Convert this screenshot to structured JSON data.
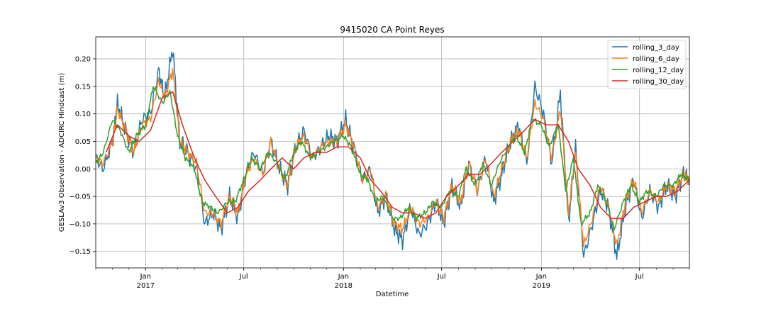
{
  "chart_data": {
    "type": "line",
    "title": "9415020 CA Point Reyes",
    "xlabel": "Datetime",
    "ylabel": "GESLAv3 Observation - ADCIRC Hindcast (m)",
    "x_range": [
      "2016-10-01",
      "2019-10-01"
    ],
    "ylim": [
      -0.18,
      0.24
    ],
    "y_ticks": [
      -0.15,
      -0.1,
      -0.05,
      0.0,
      0.05,
      0.1,
      0.15,
      0.2
    ],
    "y_tick_labels": [
      "−0.15",
      "−0.10",
      "−0.05",
      "0.00",
      "0.05",
      "0.10",
      "0.15",
      "0.20"
    ],
    "x_ticks": [
      {
        "date": "2017-01-01",
        "label": "Jan",
        "sublabel": "2017"
      },
      {
        "date": "2017-07-01",
        "label": "Jul",
        "sublabel": ""
      },
      {
        "date": "2018-01-01",
        "label": "Jan",
        "sublabel": "2018"
      },
      {
        "date": "2018-07-01",
        "label": "Jul",
        "sublabel": ""
      },
      {
        "date": "2019-01-01",
        "label": "Jan",
        "sublabel": "2019"
      },
      {
        "date": "2019-07-01",
        "label": "Jul",
        "sublabel": ""
      }
    ],
    "grid": true,
    "legend_position": "top-right",
    "series": [
      {
        "name": "rolling_3_day",
        "color": "#1f77b4",
        "x": [
          "2016-10-01",
          "2016-10-15",
          "2016-11-01",
          "2016-11-10",
          "2016-11-25",
          "2016-12-10",
          "2016-12-25",
          "2017-01-10",
          "2017-01-25",
          "2017-02-05",
          "2017-02-20",
          "2017-03-05",
          "2017-03-20",
          "2017-04-05",
          "2017-04-20",
          "2017-05-05",
          "2017-05-20",
          "2017-06-05",
          "2017-06-20",
          "2017-07-05",
          "2017-07-20",
          "2017-08-05",
          "2017-08-20",
          "2017-09-05",
          "2017-09-20",
          "2017-10-05",
          "2017-10-20",
          "2017-11-05",
          "2017-11-20",
          "2017-12-05",
          "2017-12-20",
          "2018-01-05",
          "2018-01-20",
          "2018-02-05",
          "2018-02-20",
          "2018-03-05",
          "2018-03-20",
          "2018-04-05",
          "2018-04-20",
          "2018-05-05",
          "2018-05-20",
          "2018-06-05",
          "2018-06-20",
          "2018-07-05",
          "2018-07-20",
          "2018-08-05",
          "2018-08-20",
          "2018-09-05",
          "2018-09-20",
          "2018-10-05",
          "2018-10-20",
          "2018-11-05",
          "2018-11-20",
          "2018-12-05",
          "2018-12-20",
          "2019-01-05",
          "2019-01-20",
          "2019-02-05",
          "2019-02-20",
          "2019-03-05",
          "2019-03-20",
          "2019-04-05",
          "2019-04-20",
          "2019-05-05",
          "2019-05-20",
          "2019-06-05",
          "2019-06-20",
          "2019-07-05",
          "2019-07-20",
          "2019-08-05",
          "2019-08-20",
          "2019-09-05",
          "2019-09-20",
          "2019-10-01"
        ],
        "values": [
          0.02,
          0.0,
          0.05,
          0.12,
          0.07,
          0.03,
          0.09,
          0.1,
          0.18,
          0.13,
          0.22,
          0.05,
          0.03,
          0.0,
          -0.1,
          -0.08,
          -0.11,
          -0.05,
          -0.09,
          -0.01,
          0.03,
          -0.01,
          0.05,
          0.0,
          -0.03,
          0.04,
          0.07,
          0.02,
          0.04,
          0.06,
          0.05,
          0.09,
          0.04,
          -0.02,
          0.0,
          -0.08,
          -0.05,
          -0.11,
          -0.13,
          -0.07,
          -0.12,
          -0.1,
          -0.06,
          -0.1,
          -0.03,
          -0.07,
          0.01,
          -0.04,
          0.02,
          -0.06,
          -0.01,
          0.05,
          0.08,
          0.01,
          0.15,
          0.1,
          0.01,
          0.14,
          -0.1,
          0.04,
          -0.16,
          -0.1,
          -0.04,
          -0.07,
          -0.16,
          -0.07,
          -0.02,
          -0.09,
          -0.04,
          -0.07,
          -0.03,
          -0.05,
          -0.01,
          -0.02
        ]
      },
      {
        "name": "rolling_6_day",
        "color": "#ff7f0e",
        "x": [
          "2016-10-01",
          "2016-10-15",
          "2016-11-01",
          "2016-11-10",
          "2016-11-25",
          "2016-12-10",
          "2016-12-25",
          "2017-01-10",
          "2017-01-25",
          "2017-02-05",
          "2017-02-20",
          "2017-03-05",
          "2017-03-20",
          "2017-04-05",
          "2017-04-20",
          "2017-05-05",
          "2017-05-20",
          "2017-06-05",
          "2017-06-20",
          "2017-07-05",
          "2017-07-20",
          "2017-08-05",
          "2017-08-20",
          "2017-09-05",
          "2017-09-20",
          "2017-10-05",
          "2017-10-20",
          "2017-11-05",
          "2017-11-20",
          "2017-12-05",
          "2017-12-20",
          "2018-01-05",
          "2018-01-20",
          "2018-02-05",
          "2018-02-20",
          "2018-03-05",
          "2018-03-20",
          "2018-04-05",
          "2018-04-20",
          "2018-05-05",
          "2018-05-20",
          "2018-06-05",
          "2018-06-20",
          "2018-07-05",
          "2018-07-20",
          "2018-08-05",
          "2018-08-20",
          "2018-09-05",
          "2018-09-20",
          "2018-10-05",
          "2018-10-20",
          "2018-11-05",
          "2018-11-20",
          "2018-12-05",
          "2018-12-20",
          "2019-01-05",
          "2019-01-20",
          "2019-02-05",
          "2019-02-20",
          "2019-03-05",
          "2019-03-20",
          "2019-04-05",
          "2019-04-20",
          "2019-05-05",
          "2019-05-20",
          "2019-06-05",
          "2019-06-20",
          "2019-07-05",
          "2019-07-20",
          "2019-08-05",
          "2019-08-20",
          "2019-09-05",
          "2019-09-20",
          "2019-10-01"
        ],
        "values": [
          0.02,
          0.01,
          0.05,
          0.11,
          0.07,
          0.03,
          0.08,
          0.09,
          0.16,
          0.13,
          0.18,
          0.05,
          0.03,
          0.01,
          -0.08,
          -0.08,
          -0.1,
          -0.05,
          -0.08,
          -0.01,
          0.02,
          -0.01,
          0.05,
          0.0,
          -0.03,
          0.04,
          0.06,
          0.02,
          0.04,
          0.05,
          0.05,
          0.08,
          0.04,
          -0.02,
          0.0,
          -0.07,
          -0.05,
          -0.1,
          -0.11,
          -0.07,
          -0.1,
          -0.09,
          -0.06,
          -0.09,
          -0.03,
          -0.06,
          0.01,
          -0.04,
          0.02,
          -0.05,
          0.0,
          0.05,
          0.07,
          0.02,
          0.12,
          0.09,
          0.02,
          0.11,
          -0.08,
          0.03,
          -0.14,
          -0.09,
          -0.03,
          -0.07,
          -0.14,
          -0.06,
          -0.02,
          -0.08,
          -0.04,
          -0.06,
          -0.03,
          -0.04,
          -0.01,
          -0.02
        ]
      },
      {
        "name": "rolling_12_day",
        "color": "#2ca02c",
        "x": [
          "2016-10-01",
          "2016-10-15",
          "2016-11-01",
          "2016-11-15",
          "2016-12-01",
          "2016-12-15",
          "2017-01-01",
          "2017-01-15",
          "2017-02-01",
          "2017-02-15",
          "2017-03-01",
          "2017-03-15",
          "2017-04-01",
          "2017-04-15",
          "2017-05-01",
          "2017-05-15",
          "2017-06-01",
          "2017-06-15",
          "2017-07-01",
          "2017-07-15",
          "2017-08-01",
          "2017-08-15",
          "2017-09-01",
          "2017-09-15",
          "2017-10-01",
          "2017-10-15",
          "2017-11-01",
          "2017-11-15",
          "2017-12-01",
          "2017-12-15",
          "2018-01-01",
          "2018-01-15",
          "2018-02-01",
          "2018-02-15",
          "2018-03-01",
          "2018-03-15",
          "2018-04-01",
          "2018-04-15",
          "2018-05-01",
          "2018-05-15",
          "2018-06-01",
          "2018-06-15",
          "2018-07-01",
          "2018-07-15",
          "2018-08-01",
          "2018-08-15",
          "2018-09-01",
          "2018-09-15",
          "2018-10-01",
          "2018-10-15",
          "2018-11-01",
          "2018-11-15",
          "2018-12-01",
          "2018-12-15",
          "2019-01-01",
          "2019-01-15",
          "2019-02-01",
          "2019-02-15",
          "2019-03-01",
          "2019-03-15",
          "2019-04-01",
          "2019-04-15",
          "2019-05-01",
          "2019-05-15",
          "2019-06-01",
          "2019-06-15",
          "2019-07-01",
          "2019-07-15",
          "2019-08-01",
          "2019-08-15",
          "2019-09-01",
          "2019-09-15",
          "2019-10-01"
        ],
        "values": [
          0.01,
          0.03,
          0.09,
          0.07,
          0.03,
          0.06,
          0.08,
          0.15,
          0.12,
          0.14,
          0.06,
          0.02,
          0.0,
          -0.06,
          -0.07,
          -0.08,
          -0.06,
          -0.06,
          -0.02,
          0.02,
          0.0,
          0.03,
          0.01,
          -0.02,
          0.03,
          0.05,
          0.02,
          0.03,
          0.04,
          0.05,
          0.06,
          0.04,
          -0.01,
          -0.02,
          -0.06,
          -0.05,
          -0.09,
          -0.09,
          -0.07,
          -0.09,
          -0.08,
          -0.06,
          -0.07,
          -0.04,
          -0.05,
          0.0,
          -0.03,
          0.01,
          -0.03,
          0.01,
          0.04,
          0.06,
          0.03,
          0.09,
          0.08,
          0.04,
          0.08,
          -0.04,
          0.02,
          -0.1,
          -0.08,
          -0.03,
          -0.06,
          -0.11,
          -0.06,
          -0.03,
          -0.06,
          -0.04,
          -0.05,
          -0.03,
          -0.03,
          -0.01,
          -0.02
        ]
      },
      {
        "name": "rolling_30_day",
        "color": "#d62728",
        "x": [
          "2016-10-20",
          "2016-11-10",
          "2016-12-01",
          "2016-12-20",
          "2017-01-10",
          "2017-02-01",
          "2017-02-20",
          "2017-03-10",
          "2017-04-01",
          "2017-04-20",
          "2017-05-10",
          "2017-06-01",
          "2017-06-20",
          "2017-07-10",
          "2017-08-01",
          "2017-08-20",
          "2017-09-10",
          "2017-10-01",
          "2017-10-20",
          "2017-11-10",
          "2017-12-01",
          "2017-12-20",
          "2018-01-10",
          "2018-02-01",
          "2018-02-20",
          "2018-03-10",
          "2018-04-01",
          "2018-04-20",
          "2018-05-10",
          "2018-06-01",
          "2018-06-20",
          "2018-07-10",
          "2018-08-01",
          "2018-08-20",
          "2018-09-10",
          "2018-10-01",
          "2018-10-20",
          "2018-11-10",
          "2018-12-01",
          "2018-12-20",
          "2019-01-10",
          "2019-02-01",
          "2019-02-20",
          "2019-03-10",
          "2019-04-01",
          "2019-04-20",
          "2019-05-10",
          "2019-06-01",
          "2019-06-20",
          "2019-07-10",
          "2019-08-01",
          "2019-08-20",
          "2019-09-10",
          "2019-10-01"
        ],
        "values": [
          0.03,
          0.08,
          0.06,
          0.05,
          0.07,
          0.13,
          0.14,
          0.08,
          0.02,
          -0.02,
          -0.05,
          -0.08,
          -0.07,
          -0.04,
          -0.02,
          0.0,
          0.02,
          0.0,
          0.02,
          0.03,
          0.03,
          0.04,
          0.04,
          0.02,
          -0.02,
          -0.04,
          -0.07,
          -0.08,
          -0.08,
          -0.09,
          -0.08,
          -0.05,
          -0.03,
          -0.01,
          -0.01,
          0.01,
          0.03,
          0.05,
          0.07,
          0.09,
          0.08,
          0.08,
          0.05,
          0.0,
          -0.03,
          -0.07,
          -0.09,
          -0.09,
          -0.07,
          -0.06,
          -0.05,
          -0.05,
          -0.04,
          -0.02
        ]
      }
    ]
  }
}
